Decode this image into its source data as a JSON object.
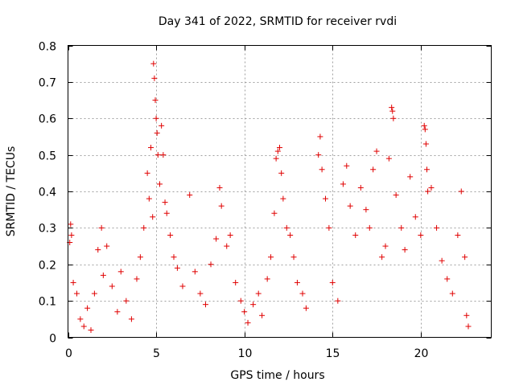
{
  "chart_data": {
    "type": "scatter",
    "title": "Day 341 of 2022, SRMTID for receiver rvdi",
    "xlabel": "GPS time / hours",
    "ylabel": "SRMTID / TECUs",
    "xlim": [
      0,
      24
    ],
    "ylim": [
      0,
      0.8
    ],
    "x_ticks": [
      0,
      5,
      10,
      15,
      20
    ],
    "x_tick_labels": [
      "0",
      "5",
      "10",
      "15",
      "20"
    ],
    "y_ticks": [
      0,
      0.1,
      0.2,
      0.3,
      0.4,
      0.5,
      0.6,
      0.7,
      0.8
    ],
    "y_tick_labels": [
      "0",
      "0.1",
      "0.2",
      "0.3",
      "0.4",
      "0.5",
      "0.6",
      "0.7",
      "0.8"
    ],
    "grid": true,
    "marker": "+",
    "marker_color": "#e00000",
    "series": [
      {
        "name": "SRMTID",
        "points": [
          [
            0.1,
            0.26
          ],
          [
            0.15,
            0.31
          ],
          [
            0.2,
            0.28
          ],
          [
            0.3,
            0.15
          ],
          [
            0.5,
            0.12
          ],
          [
            0.7,
            0.05
          ],
          [
            0.9,
            0.03
          ],
          [
            1.1,
            0.08
          ],
          [
            1.3,
            0.02
          ],
          [
            1.5,
            0.12
          ],
          [
            1.7,
            0.24
          ],
          [
            1.9,
            0.3
          ],
          [
            2.0,
            0.17
          ],
          [
            2.2,
            0.25
          ],
          [
            2.5,
            0.14
          ],
          [
            2.8,
            0.07
          ],
          [
            3.0,
            0.18
          ],
          [
            3.3,
            0.1
          ],
          [
            3.6,
            0.05
          ],
          [
            3.9,
            0.16
          ],
          [
            4.1,
            0.22
          ],
          [
            4.3,
            0.3
          ],
          [
            4.5,
            0.45
          ],
          [
            4.6,
            0.38
          ],
          [
            4.7,
            0.52
          ],
          [
            4.8,
            0.33
          ],
          [
            4.85,
            0.75
          ],
          [
            4.9,
            0.71
          ],
          [
            4.95,
            0.65
          ],
          [
            5.0,
            0.6
          ],
          [
            5.05,
            0.56
          ],
          [
            5.1,
            0.5
          ],
          [
            5.2,
            0.42
          ],
          [
            5.3,
            0.58
          ],
          [
            5.4,
            0.5
          ],
          [
            5.5,
            0.37
          ],
          [
            5.6,
            0.34
          ],
          [
            5.8,
            0.28
          ],
          [
            6.0,
            0.22
          ],
          [
            6.2,
            0.19
          ],
          [
            6.5,
            0.14
          ],
          [
            6.9,
            0.39
          ],
          [
            7.2,
            0.18
          ],
          [
            7.5,
            0.12
          ],
          [
            7.8,
            0.09
          ],
          [
            8.1,
            0.2
          ],
          [
            8.4,
            0.27
          ],
          [
            8.6,
            0.41
          ],
          [
            8.7,
            0.36
          ],
          [
            9.0,
            0.25
          ],
          [
            9.2,
            0.28
          ],
          [
            9.5,
            0.15
          ],
          [
            9.8,
            0.1
          ],
          [
            10.0,
            0.07
          ],
          [
            10.2,
            0.04
          ],
          [
            10.5,
            0.09
          ],
          [
            10.8,
            0.12
          ],
          [
            11.0,
            0.06
          ],
          [
            11.3,
            0.16
          ],
          [
            11.5,
            0.22
          ],
          [
            11.7,
            0.34
          ],
          [
            11.8,
            0.49
          ],
          [
            11.9,
            0.51
          ],
          [
            12.0,
            0.52
          ],
          [
            12.1,
            0.45
          ],
          [
            12.2,
            0.38
          ],
          [
            12.4,
            0.3
          ],
          [
            12.6,
            0.28
          ],
          [
            12.8,
            0.22
          ],
          [
            13.0,
            0.15
          ],
          [
            13.3,
            0.12
          ],
          [
            13.5,
            0.08
          ],
          [
            14.2,
            0.5
          ],
          [
            14.3,
            0.55
          ],
          [
            14.4,
            0.46
          ],
          [
            14.6,
            0.38
          ],
          [
            14.8,
            0.3
          ],
          [
            15.0,
            0.15
          ],
          [
            15.3,
            0.1
          ],
          [
            15.6,
            0.42
          ],
          [
            15.8,
            0.47
          ],
          [
            16.0,
            0.36
          ],
          [
            16.3,
            0.28
          ],
          [
            16.6,
            0.41
          ],
          [
            16.9,
            0.35
          ],
          [
            17.1,
            0.3
          ],
          [
            17.3,
            0.46
          ],
          [
            17.5,
            0.51
          ],
          [
            17.8,
            0.22
          ],
          [
            18.0,
            0.25
          ],
          [
            18.2,
            0.49
          ],
          [
            18.35,
            0.63
          ],
          [
            18.4,
            0.62
          ],
          [
            18.45,
            0.6
          ],
          [
            18.6,
            0.39
          ],
          [
            18.9,
            0.3
          ],
          [
            19.1,
            0.24
          ],
          [
            19.4,
            0.44
          ],
          [
            19.7,
            0.33
          ],
          [
            20.0,
            0.28
          ],
          [
            20.2,
            0.58
          ],
          [
            20.25,
            0.57
          ],
          [
            20.3,
            0.53
          ],
          [
            20.35,
            0.46
          ],
          [
            20.4,
            0.4
          ],
          [
            20.6,
            0.41
          ],
          [
            20.9,
            0.3
          ],
          [
            21.2,
            0.21
          ],
          [
            21.5,
            0.16
          ],
          [
            21.8,
            0.12
          ],
          [
            22.1,
            0.28
          ],
          [
            22.3,
            0.4
          ],
          [
            22.5,
            0.22
          ],
          [
            22.6,
            0.06
          ],
          [
            22.7,
            0.03
          ]
        ]
      }
    ]
  }
}
